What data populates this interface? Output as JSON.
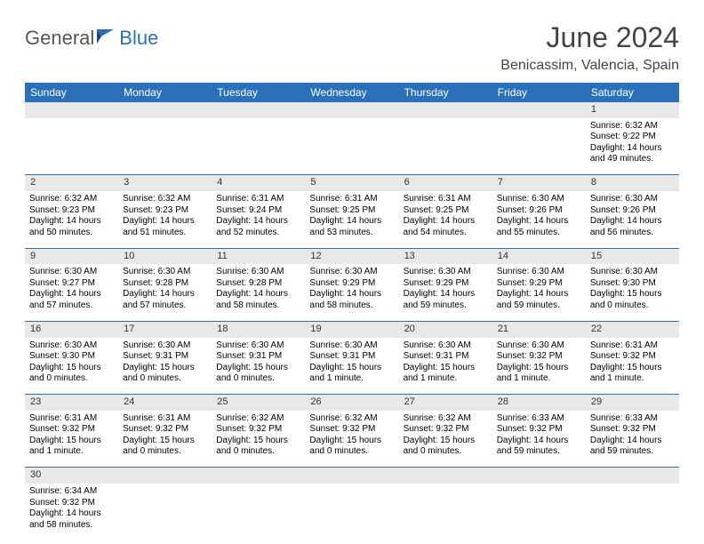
{
  "logo": {
    "text1": "General",
    "text2": "Blue"
  },
  "title": "June 2024",
  "location": "Benicassim, Valencia, Spain",
  "colors": {
    "header_bg": "#2a70b8",
    "header_fg": "#ffffff",
    "daynum_bg": "#e8e8e8",
    "rule": "#2a70b8"
  },
  "day_headers": [
    "Sunday",
    "Monday",
    "Tuesday",
    "Wednesday",
    "Thursday",
    "Friday",
    "Saturday"
  ],
  "weeks": [
    {
      "nums": [
        "",
        "",
        "",
        "",
        "",
        "",
        "1"
      ],
      "cells": [
        null,
        null,
        null,
        null,
        null,
        null,
        {
          "sr": "Sunrise: 6:32 AM",
          "ss": "Sunset: 9:22 PM",
          "dl": "Daylight: 14 hours and 49 minutes."
        }
      ]
    },
    {
      "nums": [
        "2",
        "3",
        "4",
        "5",
        "6",
        "7",
        "8"
      ],
      "cells": [
        {
          "sr": "Sunrise: 6:32 AM",
          "ss": "Sunset: 9:23 PM",
          "dl": "Daylight: 14 hours and 50 minutes."
        },
        {
          "sr": "Sunrise: 6:32 AM",
          "ss": "Sunset: 9:23 PM",
          "dl": "Daylight: 14 hours and 51 minutes."
        },
        {
          "sr": "Sunrise: 6:31 AM",
          "ss": "Sunset: 9:24 PM",
          "dl": "Daylight: 14 hours and 52 minutes."
        },
        {
          "sr": "Sunrise: 6:31 AM",
          "ss": "Sunset: 9:25 PM",
          "dl": "Daylight: 14 hours and 53 minutes."
        },
        {
          "sr": "Sunrise: 6:31 AM",
          "ss": "Sunset: 9:25 PM",
          "dl": "Daylight: 14 hours and 54 minutes."
        },
        {
          "sr": "Sunrise: 6:30 AM",
          "ss": "Sunset: 9:26 PM",
          "dl": "Daylight: 14 hours and 55 minutes."
        },
        {
          "sr": "Sunrise: 6:30 AM",
          "ss": "Sunset: 9:26 PM",
          "dl": "Daylight: 14 hours and 56 minutes."
        }
      ]
    },
    {
      "nums": [
        "9",
        "10",
        "11",
        "12",
        "13",
        "14",
        "15"
      ],
      "cells": [
        {
          "sr": "Sunrise: 6:30 AM",
          "ss": "Sunset: 9:27 PM",
          "dl": "Daylight: 14 hours and 57 minutes."
        },
        {
          "sr": "Sunrise: 6:30 AM",
          "ss": "Sunset: 9:28 PM",
          "dl": "Daylight: 14 hours and 57 minutes."
        },
        {
          "sr": "Sunrise: 6:30 AM",
          "ss": "Sunset: 9:28 PM",
          "dl": "Daylight: 14 hours and 58 minutes."
        },
        {
          "sr": "Sunrise: 6:30 AM",
          "ss": "Sunset: 9:29 PM",
          "dl": "Daylight: 14 hours and 58 minutes."
        },
        {
          "sr": "Sunrise: 6:30 AM",
          "ss": "Sunset: 9:29 PM",
          "dl": "Daylight: 14 hours and 59 minutes."
        },
        {
          "sr": "Sunrise: 6:30 AM",
          "ss": "Sunset: 9:29 PM",
          "dl": "Daylight: 14 hours and 59 minutes."
        },
        {
          "sr": "Sunrise: 6:30 AM",
          "ss": "Sunset: 9:30 PM",
          "dl": "Daylight: 15 hours and 0 minutes."
        }
      ]
    },
    {
      "nums": [
        "16",
        "17",
        "18",
        "19",
        "20",
        "21",
        "22"
      ],
      "cells": [
        {
          "sr": "Sunrise: 6:30 AM",
          "ss": "Sunset: 9:30 PM",
          "dl": "Daylight: 15 hours and 0 minutes."
        },
        {
          "sr": "Sunrise: 6:30 AM",
          "ss": "Sunset: 9:31 PM",
          "dl": "Daylight: 15 hours and 0 minutes."
        },
        {
          "sr": "Sunrise: 6:30 AM",
          "ss": "Sunset: 9:31 PM",
          "dl": "Daylight: 15 hours and 0 minutes."
        },
        {
          "sr": "Sunrise: 6:30 AM",
          "ss": "Sunset: 9:31 PM",
          "dl": "Daylight: 15 hours and 1 minute."
        },
        {
          "sr": "Sunrise: 6:30 AM",
          "ss": "Sunset: 9:31 PM",
          "dl": "Daylight: 15 hours and 1 minute."
        },
        {
          "sr": "Sunrise: 6:30 AM",
          "ss": "Sunset: 9:32 PM",
          "dl": "Daylight: 15 hours and 1 minute."
        },
        {
          "sr": "Sunrise: 6:31 AM",
          "ss": "Sunset: 9:32 PM",
          "dl": "Daylight: 15 hours and 1 minute."
        }
      ]
    },
    {
      "nums": [
        "23",
        "24",
        "25",
        "26",
        "27",
        "28",
        "29"
      ],
      "cells": [
        {
          "sr": "Sunrise: 6:31 AM",
          "ss": "Sunset: 9:32 PM",
          "dl": "Daylight: 15 hours and 1 minute."
        },
        {
          "sr": "Sunrise: 6:31 AM",
          "ss": "Sunset: 9:32 PM",
          "dl": "Daylight: 15 hours and 0 minutes."
        },
        {
          "sr": "Sunrise: 6:32 AM",
          "ss": "Sunset: 9:32 PM",
          "dl": "Daylight: 15 hours and 0 minutes."
        },
        {
          "sr": "Sunrise: 6:32 AM",
          "ss": "Sunset: 9:32 PM",
          "dl": "Daylight: 15 hours and 0 minutes."
        },
        {
          "sr": "Sunrise: 6:32 AM",
          "ss": "Sunset: 9:32 PM",
          "dl": "Daylight: 15 hours and 0 minutes."
        },
        {
          "sr": "Sunrise: 6:33 AM",
          "ss": "Sunset: 9:32 PM",
          "dl": "Daylight: 14 hours and 59 minutes."
        },
        {
          "sr": "Sunrise: 6:33 AM",
          "ss": "Sunset: 9:32 PM",
          "dl": "Daylight: 14 hours and 59 minutes."
        }
      ]
    },
    {
      "nums": [
        "30",
        "",
        "",
        "",
        "",
        "",
        ""
      ],
      "cells": [
        {
          "sr": "Sunrise: 6:34 AM",
          "ss": "Sunset: 9:32 PM",
          "dl": "Daylight: 14 hours and 58 minutes."
        },
        null,
        null,
        null,
        null,
        null,
        null
      ]
    }
  ]
}
